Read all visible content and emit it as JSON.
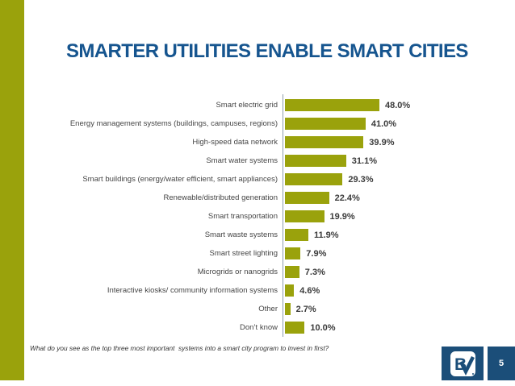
{
  "slide": {
    "title": "SMARTER UTILITIES ENABLE SMART CITIES",
    "footer_question": "What do you see as the top three most important  systems into a smart city program to invest in first?",
    "page_number": "5",
    "logo_name": "black-and-veatch-bv-logo"
  },
  "colors": {
    "accent_olive": "#9aa20c",
    "title_blue": "#16558f",
    "logo_blue": "#1b4e79",
    "axis_gray": "#8e9dad",
    "label_gray": "#454545",
    "value_gray": "#3b3b3b"
  },
  "chart_data": {
    "type": "bar",
    "orientation": "horizontal",
    "title": "SMARTER UTILITIES ENABLE SMART CITIES",
    "xlabel": "",
    "ylabel": "",
    "grid": false,
    "legend": false,
    "value_label_format": "percent_one_decimal",
    "bar_color": "#9aa20c",
    "categories": [
      "Smart electric grid",
      "Energy management systems (buildings, campuses, regions)",
      "High-speed data network",
      "Smart water systems",
      "Smart buildings (energy/water efficient, smart appliances)",
      "Renewable/distributed generation",
      "Smart transportation",
      "Smart waste systems",
      "Smart street lighting",
      "Microgrids or nanogrids",
      "Interactive kiosks/ community information systems",
      "Other",
      "Don’t know"
    ],
    "values": [
      48.0,
      41.0,
      39.9,
      31.1,
      29.3,
      22.4,
      19.9,
      11.9,
      7.9,
      7.3,
      4.6,
      2.7,
      10.0
    ],
    "value_labels": [
      "48.0%",
      "41.0%",
      "39.9%",
      "31.1%",
      "29.3%",
      "22.4%",
      "19.9%",
      "11.9%",
      "7.9%",
      "7.3%",
      "4.6%",
      "2.7%",
      "10.0%"
    ]
  }
}
